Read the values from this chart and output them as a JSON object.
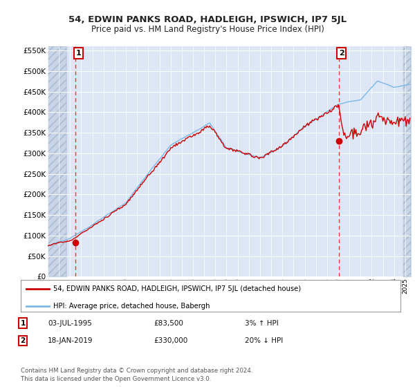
{
  "title": "54, EDWIN PANKS ROAD, HADLEIGH, IPSWICH, IP7 5JL",
  "subtitle": "Price paid vs. HM Land Registry's House Price Index (HPI)",
  "legend_line1": "54, EDWIN PANKS ROAD, HADLEIGH, IPSWICH, IP7 5JL (detached house)",
  "legend_line2": "HPI: Average price, detached house, Babergh",
  "annotation1_label": "1",
  "annotation1_date": "03-JUL-1995",
  "annotation1_price": "£83,500",
  "annotation1_hpi": "3% ↑ HPI",
  "annotation2_label": "2",
  "annotation2_date": "18-JAN-2019",
  "annotation2_price": "£330,000",
  "annotation2_hpi": "20% ↓ HPI",
  "footer": "Contains HM Land Registry data © Crown copyright and database right 2024.\nThis data is licensed under the Open Government Licence v3.0.",
  "hpi_color": "#7ab8e8",
  "price_color": "#cc0000",
  "bg_color": "#dce6f5",
  "grid_color": "#ffffff",
  "vline_color": "#ee3333",
  "ylim": [
    0,
    560000
  ],
  "yticks": [
    0,
    50000,
    100000,
    150000,
    200000,
    250000,
    300000,
    350000,
    400000,
    450000,
    500000,
    550000
  ],
  "sale1_year": 1995.5,
  "sale1_price": 83500,
  "sale2_year": 2019.05,
  "sale2_price": 330000,
  "xlim_left": 1993.0,
  "xlim_right": 2025.5,
  "hatch_left_end": 1994.7,
  "hatch_right_start": 2024.8
}
